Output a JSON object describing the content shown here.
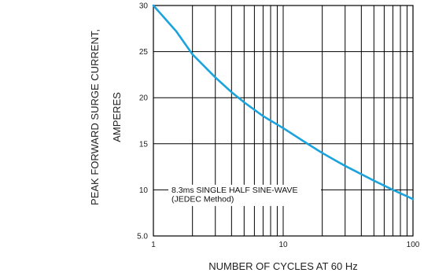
{
  "chart_data": {
    "type": "line",
    "x_scale": "log",
    "y_scale": "linear",
    "xlim": [
      1,
      100
    ],
    "ylim": [
      5,
      30
    ],
    "xlabel": "NUMBER OF CYCLES AT 60 Hz",
    "ylabel_line1": "PEAK FORWARD SURGE CURRENT,",
    "ylabel_line2": "AMPERES",
    "x_tick_labels": [
      "1",
      "10",
      "100"
    ],
    "y_tick_labels": [
      "5.0",
      "10",
      "15",
      "20",
      "25",
      "30"
    ],
    "y_tick_values": [
      5,
      10,
      15,
      20,
      25,
      30
    ],
    "grid": true,
    "annotation_line1": "8.3ms SINGLE HALF SINE-WAVE",
    "annotation_line2": "(JEDEC Method)",
    "series": [
      {
        "color": "#1aa3dc",
        "x": [
          1,
          1.5,
          2,
          3,
          4,
          5,
          7,
          10,
          15,
          20,
          30,
          40,
          50,
          70,
          100
        ],
        "y": [
          30,
          27.2,
          24.7,
          22.2,
          20.6,
          19.5,
          18.0,
          16.7,
          15.1,
          14.0,
          12.6,
          11.7,
          11.0,
          10.0,
          9.0
        ]
      }
    ]
  }
}
